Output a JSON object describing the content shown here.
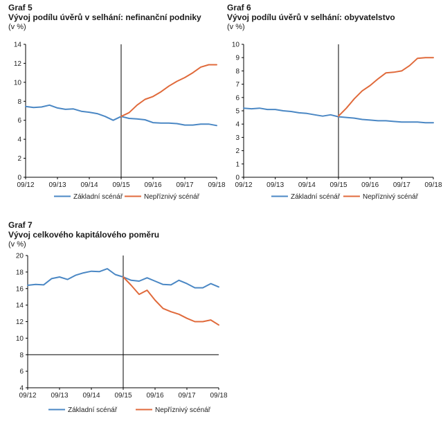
{
  "chart_data": [
    {
      "type": "line",
      "number": "Graf 5",
      "title": "Vývoj podílu úvěrů v selhání: nefinanční podniky",
      "unit": "(v %)",
      "xlabel": "",
      "ylabel": "(v %)",
      "ylim": [
        0,
        14
      ],
      "yticks": [
        0,
        2,
        4,
        6,
        8,
        10,
        12,
        14
      ],
      "xticks": [
        "09/12",
        "09/13",
        "09/14",
        "09/15",
        "09/16",
        "09/17",
        "09/18"
      ],
      "x": [
        0,
        0.25,
        0.5,
        0.75,
        1,
        1.25,
        1.5,
        1.75,
        2,
        2.25,
        2.5,
        2.75,
        3,
        3.25,
        3.5,
        3.75,
        4,
        4.25,
        4.5,
        4.75,
        5,
        5.25,
        5.5,
        5.75,
        6
      ],
      "vline_x": 3,
      "series": [
        {
          "name": "Základní scénář",
          "color": "#4a87c4",
          "values": [
            7.45,
            7.35,
            7.4,
            7.6,
            7.3,
            7.15,
            7.2,
            6.95,
            6.85,
            6.7,
            6.4,
            6.0,
            6.4,
            6.2,
            6.15,
            6.05,
            5.75,
            5.7,
            5.7,
            5.65,
            5.5,
            5.5,
            5.6,
            5.6,
            5.45
          ]
        },
        {
          "name": "Nepříznivý scénář",
          "color": "#e06a3b",
          "values": [
            null,
            null,
            null,
            null,
            null,
            null,
            null,
            null,
            null,
            null,
            null,
            null,
            6.4,
            6.8,
            7.6,
            8.2,
            8.5,
            9.0,
            9.6,
            10.1,
            10.5,
            11.0,
            11.6,
            11.85,
            11.85
          ]
        }
      ]
    },
    {
      "type": "line",
      "number": "Graf 6",
      "title": "Vývoj podílu úvěrů v selhání: obyvatelstvo",
      "unit": "(v %)",
      "xlabel": "",
      "ylabel": "(v %)",
      "ylim": [
        0,
        10
      ],
      "yticks": [
        0,
        1,
        2,
        3,
        4,
        5,
        6,
        7,
        8,
        9,
        10
      ],
      "xticks": [
        "09/12",
        "09/13",
        "09/14",
        "09/15",
        "09/16",
        "09/17",
        "09/18"
      ],
      "x": [
        0,
        0.25,
        0.5,
        0.75,
        1,
        1.25,
        1.5,
        1.75,
        2,
        2.25,
        2.5,
        2.75,
        3,
        3.25,
        3.5,
        3.75,
        4,
        4.25,
        4.5,
        4.75,
        5,
        5.25,
        5.5,
        5.75,
        6
      ],
      "vline_x": 3,
      "series": [
        {
          "name": "Základní scénář",
          "color": "#4a87c4",
          "values": [
            5.2,
            5.15,
            5.2,
            5.1,
            5.1,
            5.0,
            4.95,
            4.85,
            4.8,
            4.7,
            4.6,
            4.7,
            4.55,
            4.5,
            4.45,
            4.35,
            4.3,
            4.25,
            4.25,
            4.2,
            4.15,
            4.15,
            4.15,
            4.1,
            4.1
          ]
        },
        {
          "name": "Nepříznivý scénář",
          "color": "#e06a3b",
          "values": [
            null,
            null,
            null,
            null,
            null,
            null,
            null,
            null,
            null,
            null,
            null,
            null,
            4.6,
            5.2,
            5.9,
            6.5,
            6.9,
            7.4,
            7.85,
            7.9,
            8.0,
            8.4,
            8.95,
            9.0,
            9.0
          ]
        }
      ]
    },
    {
      "type": "line",
      "number": "Graf 7",
      "title": "Vývoj celkového kapitálového poměru",
      "unit": "(v %)",
      "xlabel": "",
      "ylabel": "(v %)",
      "ylim": [
        4,
        20
      ],
      "yticks": [
        4,
        6,
        8,
        10,
        12,
        14,
        16,
        18,
        20
      ],
      "xticks": [
        "09/12",
        "09/13",
        "09/14",
        "09/15",
        "09/16",
        "09/17",
        "09/18"
      ],
      "x": [
        0,
        0.25,
        0.5,
        0.75,
        1,
        1.25,
        1.5,
        1.75,
        2,
        2.25,
        2.5,
        2.75,
        3,
        3.25,
        3.5,
        3.75,
        4,
        4.25,
        4.5,
        4.75,
        5,
        5.25,
        5.5,
        5.75,
        6
      ],
      "vline_x": 3,
      "hline_y": 8,
      "series": [
        {
          "name": "Základní scénář",
          "color": "#4a87c4",
          "values": [
            16.4,
            16.5,
            16.45,
            17.2,
            17.4,
            17.1,
            17.6,
            17.9,
            18.1,
            18.05,
            18.4,
            17.7,
            17.4,
            17.0,
            16.9,
            17.3,
            16.9,
            16.5,
            16.45,
            17.0,
            16.6,
            16.1,
            16.1,
            16.6,
            16.2
          ]
        },
        {
          "name": "Nepříznivý scénář",
          "color": "#e06a3b",
          "values": [
            null,
            null,
            null,
            null,
            null,
            null,
            null,
            null,
            null,
            null,
            null,
            null,
            17.4,
            16.4,
            15.3,
            15.8,
            14.6,
            13.6,
            13.2,
            12.9,
            12.4,
            12.0,
            12.0,
            12.2,
            11.6
          ]
        }
      ]
    }
  ]
}
